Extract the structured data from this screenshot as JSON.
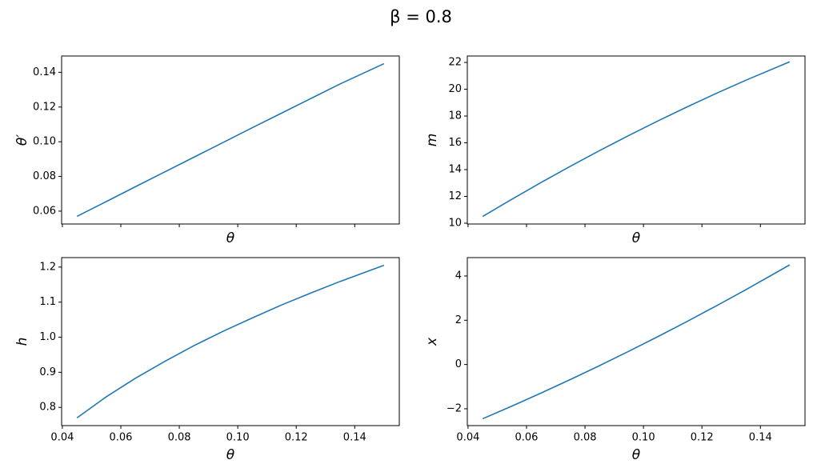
{
  "title": "β = 0.8",
  "chart_data": [
    {
      "type": "line",
      "xlabel": "θ",
      "ylabel": "θ′",
      "show_xtick_labels": false,
      "x": [
        0.045,
        0.055,
        0.065,
        0.075,
        0.085,
        0.095,
        0.105,
        0.115,
        0.125,
        0.135,
        0.15
      ],
      "values": [
        0.057,
        0.0655,
        0.0741,
        0.0826,
        0.0911,
        0.0996,
        0.1081,
        0.1165,
        0.1249,
        0.1333,
        0.145
      ],
      "color": "#1f77b4",
      "xlim": [
        0.03975,
        0.15525
      ],
      "xticks": [
        0.04,
        0.06,
        0.08,
        {
          "value": 0.1,
          "label": "0.10"
        },
        0.12,
        0.14
      ],
      "ylim": [
        0.0526,
        0.1494
      ],
      "yticks": [
        0.06,
        0.08,
        {
          "value": 0.1,
          "label": "0.10"
        },
        0.12,
        0.14
      ]
    },
    {
      "type": "line",
      "xlabel": "θ",
      "ylabel": "m",
      "show_xtick_labels": false,
      "x": [
        0.045,
        0.055,
        0.065,
        0.075,
        0.085,
        0.095,
        0.105,
        0.115,
        0.125,
        0.135,
        0.15
      ],
      "values": [
        10.5,
        11.79,
        13.04,
        14.25,
        15.42,
        16.55,
        17.64,
        18.69,
        19.7,
        20.67,
        22.05
      ],
      "color": "#1f77b4",
      "xlim": [
        0.03975,
        0.15525
      ],
      "xticks": [
        0.04,
        0.06,
        0.08,
        {
          "value": 0.1,
          "label": "0.10"
        },
        0.12,
        0.14
      ],
      "ylim": [
        9.94,
        22.48
      ],
      "yticks": [
        10,
        12,
        14,
        16,
        18,
        20,
        22
      ]
    },
    {
      "type": "line",
      "xlabel": "θ",
      "ylabel": "h",
      "show_xtick_labels": true,
      "x": [
        0.045,
        0.055,
        0.065,
        0.075,
        0.085,
        0.095,
        0.105,
        0.115,
        0.125,
        0.135,
        0.15
      ],
      "values": [
        0.77,
        0.83,
        0.883,
        0.931,
        0.976,
        1.017,
        1.055,
        1.092,
        1.126,
        1.159,
        1.205
      ],
      "color": "#1f77b4",
      "xlim": [
        0.03975,
        0.15525
      ],
      "xticks": [
        0.04,
        0.06,
        0.08,
        {
          "value": 0.1,
          "label": "0.10"
        },
        0.12,
        0.14
      ],
      "ylim": [
        0.748,
        1.227
      ],
      "yticks": [
        0.8,
        0.9,
        {
          "value": 1,
          "label": "1.0"
        },
        1.1,
        1.2
      ]
    },
    {
      "type": "line",
      "xlabel": "θ",
      "ylabel": "x",
      "show_xtick_labels": true,
      "x": [
        0.045,
        0.055,
        0.065,
        0.075,
        0.085,
        0.095,
        0.105,
        0.115,
        0.125,
        0.135,
        0.15
      ],
      "values": [
        -2.45,
        -1.878,
        -1.287,
        -0.678,
        -0.049,
        0.599,
        1.266,
        1.951,
        2.656,
        3.379,
        4.5
      ],
      "color": "#1f77b4",
      "xlim": [
        0.03975,
        0.15525
      ],
      "xticks": [
        0.04,
        0.06,
        0.08,
        {
          "value": 0.1,
          "label": "0.10"
        },
        0.12,
        0.14
      ],
      "ylim": [
        -2.76,
        4.83
      ],
      "yticks": [
        {
          "value": -2,
          "label": "−2"
        },
        0,
        2,
        4
      ]
    }
  ]
}
